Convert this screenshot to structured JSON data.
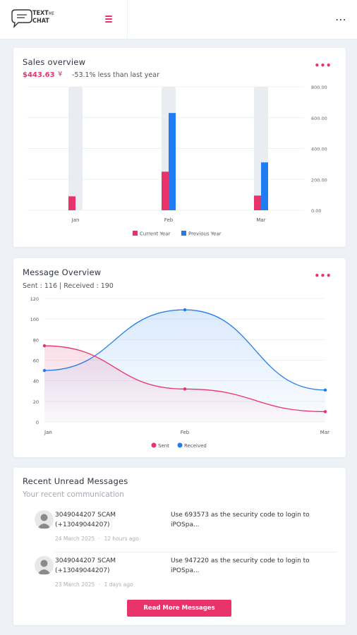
{
  "app": {
    "logo_line1": "TEXT",
    "logo_small": "ME",
    "logo_line2": "CHAT",
    "more_icon": "vertical-ellipsis-icon",
    "menu_icon": "hamburger-icon"
  },
  "colors": {
    "accent": "#e8336a",
    "blue": "#1f7cf2",
    "bar_bg": "#e9edf1"
  },
  "sales": {
    "title": "Sales overview",
    "amount": "$443.63",
    "trend_icon": "down-trend-icon",
    "change_text": "-53.1% less than last year",
    "menu_dots": "•••"
  },
  "messages_overview": {
    "title": "Message Overview",
    "subtitle": "Sent : 116 | Received : 190",
    "menu_dots": "•••"
  },
  "recent": {
    "title": "Recent Unread Messages",
    "subtitle": "Your recent communication",
    "items": [
      {
        "sender_line1": "3049044207 SCAM",
        "sender_line2": "(+13049044207)",
        "date": "24 March 2025",
        "age": "12 hours ago",
        "text": "Use 693573 as the security code to login to iPOSpa..."
      },
      {
        "sender_line1": "3049044207 SCAM",
        "sender_line2": "(+13049044207)",
        "date": "23 March 2025",
        "age": "1 days ago",
        "text": "Use 947220 as the security code to login to iPOSpa..."
      }
    ],
    "read_more_label": "Read More Messages"
  },
  "chart_data": [
    {
      "type": "bar",
      "categories": [
        "Jan",
        "Feb",
        "Mar"
      ],
      "series": [
        {
          "name": "Current Year",
          "values": [
            90,
            250,
            95
          ],
          "color": "#e8336a"
        },
        {
          "name": "Previous Year",
          "values": [
            0,
            630,
            310
          ],
          "color": "#1f7cf2"
        }
      ],
      "ylim": [
        0,
        800
      ],
      "ytick_labels": [
        "0.00",
        "200.00",
        "400.00",
        "600.00",
        "800.00"
      ],
      "ytick_values": [
        0,
        200,
        400,
        600,
        800
      ],
      "legend": "bottom",
      "grid": true
    },
    {
      "type": "area",
      "x": [
        "Jan",
        "Feb",
        "Mar"
      ],
      "series": [
        {
          "name": "Sent",
          "values": [
            74,
            32,
            10
          ],
          "color": "#e8336a"
        },
        {
          "name": "Received",
          "values": [
            50,
            109,
            31
          ],
          "color": "#1f7cf2"
        }
      ],
      "ylim": [
        0,
        120
      ],
      "yticks": [
        0,
        20,
        40,
        60,
        80,
        100,
        120
      ],
      "legend": "bottom",
      "grid": true
    }
  ]
}
